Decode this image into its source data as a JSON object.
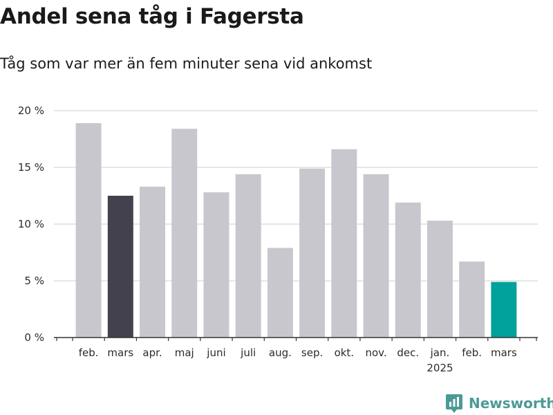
{
  "header": {
    "title": "Andel sena tåg i Fagersta",
    "subtitle": "Tåg som var mer än fem minuter sena vid ankomst"
  },
  "brand": {
    "name": "Newsworthy"
  },
  "chart_data": {
    "type": "bar",
    "title": "Andel sena tåg i Fagersta",
    "subtitle": "Tåg som var mer än fem minuter sena vid ankomst",
    "xlabel": "",
    "ylabel": "",
    "ylim": [
      0,
      20
    ],
    "yticks": [
      0,
      5,
      10,
      15,
      20
    ],
    "ytick_labels": [
      "0 %",
      "5 %",
      "10 %",
      "15 %",
      "20 %"
    ],
    "grid": true,
    "categories": [
      "feb.",
      "mars",
      "apr.",
      "maj",
      "juni",
      "juli",
      "aug.",
      "sep.",
      "okt.",
      "nov.",
      "dec.",
      "jan.",
      "feb.",
      "mars"
    ],
    "year_label": "2025",
    "year_label_under_index": 11,
    "values": [
      18.9,
      12.5,
      13.3,
      18.4,
      12.8,
      14.4,
      7.9,
      14.9,
      16.6,
      14.4,
      11.9,
      10.3,
      6.7,
      4.9
    ],
    "colors": {
      "default": "#c8c7cd",
      "comparison": "#42414d",
      "latest": "#00a29b",
      "grid": "#dddddd",
      "axis": "#333333"
    },
    "highlight": {
      "comparison_index": 1,
      "latest_index": 13
    }
  }
}
